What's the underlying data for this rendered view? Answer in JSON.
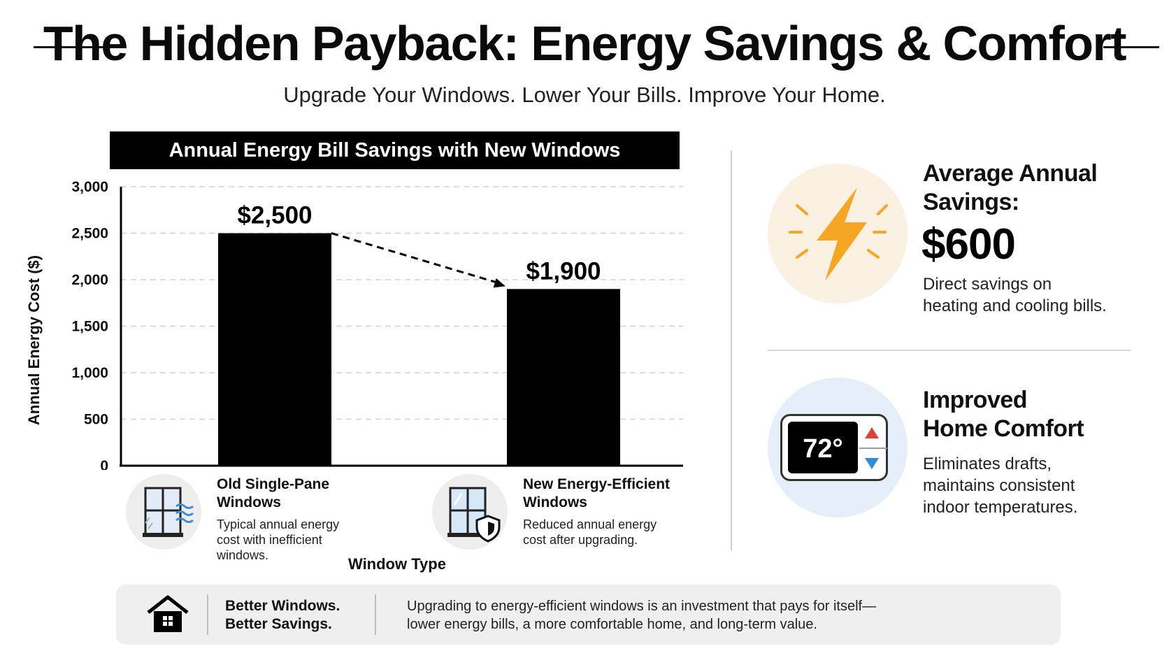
{
  "header": {
    "title": "The Hidden Payback: Energy Savings & Comfort",
    "subtitle": "Upgrade Your Windows. Lower Your Bills. Improve Your Home."
  },
  "chart_data": {
    "type": "bar",
    "title": "Annual Energy Bill Savings with New Windows",
    "xlabel": "Window Type",
    "ylabel": "Annual Energy Cost ($)",
    "ylim": [
      0,
      3000
    ],
    "yticks": [
      "0",
      "500",
      "1,000",
      "1,500",
      "2,000",
      "2,500",
      "3,000"
    ],
    "grid": true,
    "categories": [
      "Old Single-Pane Windows",
      "New Energy-Efficient Windows"
    ],
    "values": [
      2500,
      1900
    ],
    "data_labels": [
      "$2,500",
      "$1,900"
    ],
    "bar_color": "#000000"
  },
  "categories": [
    {
      "name_line1": "Old Single-Pane",
      "name_line2": "Windows",
      "desc_line1": "Typical annual energy",
      "desc_line2": "cost with inefficient",
      "desc_line3": "windows.",
      "icon": "drafty-window-icon"
    },
    {
      "name_line1": "New Energy-Efficient",
      "name_line2": "Windows",
      "desc_line1": "Reduced annual energy",
      "desc_line2": "cost after upgrading.",
      "icon": "shielded-window-icon"
    }
  ],
  "savings": {
    "title_line1": "Average Annual",
    "title_line2": "Savings:",
    "value": "$600",
    "desc_line1": "Direct savings on",
    "desc_line2": "heating and cooling bills.",
    "icon": "lightning-bolt-icon",
    "circle_color": "#fbf1e2",
    "accent": "#f6a623"
  },
  "comfort": {
    "title_line1": "Improved",
    "title_line2": "Home Comfort",
    "desc_line1": "Eliminates drafts,",
    "desc_line2": "maintains consistent",
    "desc_line3": "indoor temperatures.",
    "thermostat_reading": "72°",
    "icon": "thermostat-icon",
    "circle_color": "#e6eff9"
  },
  "footer": {
    "tag_line1": "Better Windows.",
    "tag_line2": "Better Savings.",
    "text_line1": "Upgrading to energy-efficient windows is an investment that pays for itself—",
    "text_line2": "lower energy bills, a more comfortable home, and long-term value.",
    "icon": "house-icon"
  }
}
